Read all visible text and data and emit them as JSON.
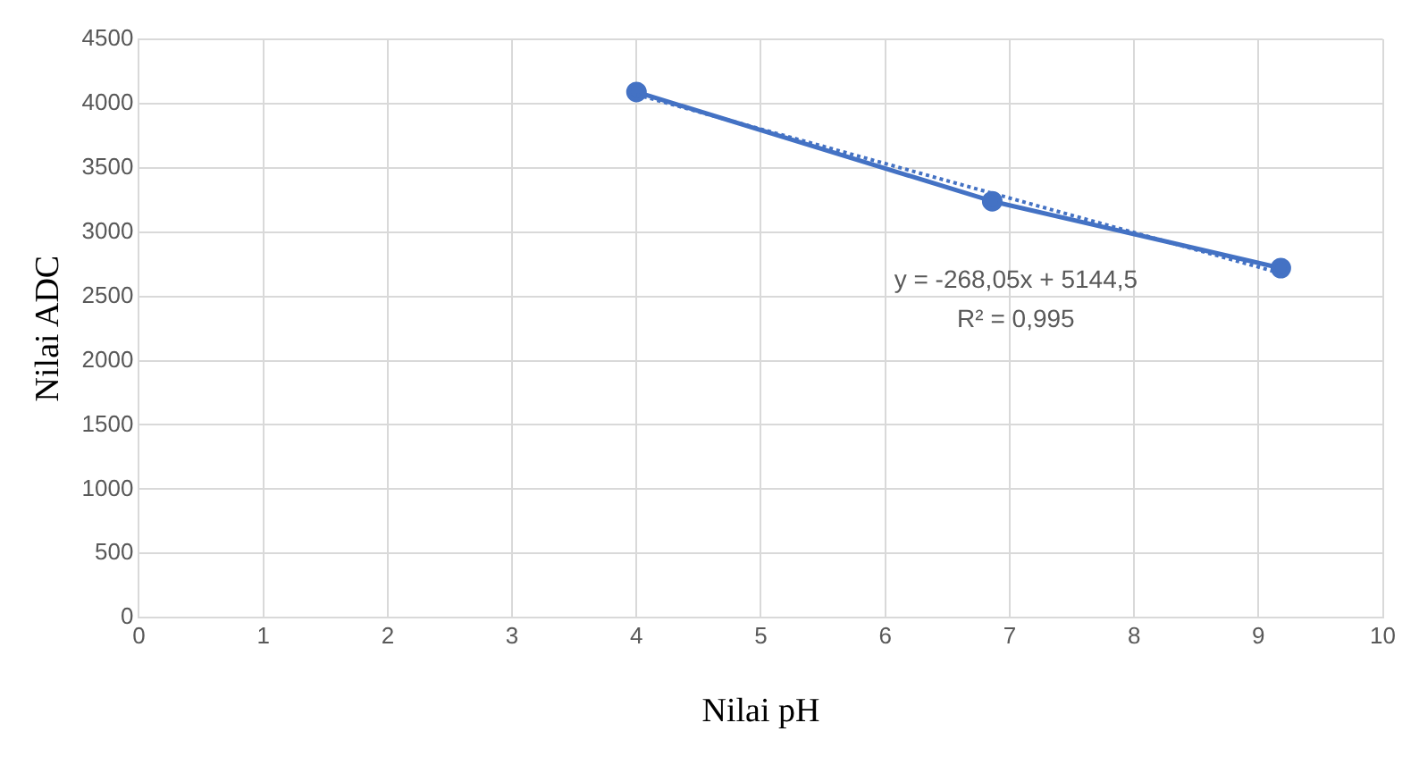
{
  "chart_data": {
    "type": "line",
    "xlabel": "Nilai pH",
    "ylabel": "Nilai ADC",
    "xlim": [
      0,
      10
    ],
    "xticks": [
      0,
      1,
      2,
      3,
      4,
      5,
      6,
      7,
      8,
      9,
      10
    ],
    "ylim": [
      0,
      4500
    ],
    "yticks": [
      0,
      500,
      1000,
      1500,
      2000,
      2500,
      3000,
      3500,
      4000,
      4500
    ],
    "grid": true,
    "series": [
      {
        "color": "#4472c4",
        "x": [
          4,
          6.86,
          9.18
        ],
        "values": [
          4090,
          3240,
          2720
        ],
        "marker": "circle",
        "line_style": "solid"
      },
      {
        "color": "#4472c4",
        "x": [
          4,
          9.18
        ],
        "values": [
          4070,
          2680
        ],
        "marker": "none",
        "line_style": "dotted"
      }
    ],
    "annotations": [
      "y = -268,05x + 5144,5",
      "R² = 0,995"
    ]
  }
}
